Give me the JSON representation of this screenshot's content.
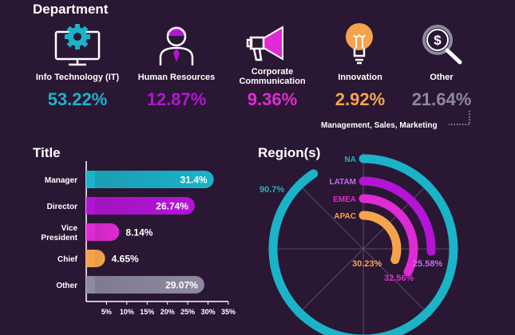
{
  "department": {
    "title": "Department",
    "items": [
      {
        "label": "Info Technology (IT)",
        "value": "53.22%",
        "color": "#1ab3c8",
        "icon": "monitor-gear-icon"
      },
      {
        "label": "Human Resources",
        "value": "12.87%",
        "color": "#b414d6",
        "icon": "person-icon"
      },
      {
        "label": "Corporate\nCommunication",
        "value": "9.36%",
        "color": "#e02ad3",
        "icon": "megaphone-icon"
      },
      {
        "label": "Innovation",
        "value": "2.92%",
        "color": "#f6a44b",
        "icon": "lightbulb-icon"
      },
      {
        "label": "Other",
        "value": "21.64%",
        "color": "#8d8aa0",
        "icon": "money-search-icon"
      }
    ],
    "note": "Management, Sales, Marketing"
  },
  "chart_data": [
    {
      "type": "bar",
      "orientation": "horizontal",
      "title": "Title",
      "categories": [
        "Manager",
        "Director",
        "Vice\nPresident",
        "Chief",
        "Other"
      ],
      "values": [
        31.4,
        26.74,
        8.14,
        4.65,
        29.07
      ],
      "value_labels": [
        "31.4%",
        "26.74%",
        "8.14%",
        "4.65%",
        "29.07%"
      ],
      "colors": [
        "#1ab3c8",
        "#b414d6",
        "#e02ad3",
        "#f6a44b",
        "#8d8aa0"
      ],
      "xlim": [
        0,
        35
      ],
      "xticks": [
        "5%",
        "10%",
        "15%",
        "20%",
        "25%",
        "30%",
        "35%"
      ]
    },
    {
      "type": "radial-bar",
      "title": "Region(s)",
      "categories": [
        "NA",
        "LATAM",
        "EMEA",
        "APAC"
      ],
      "values": [
        90.7,
        25.58,
        32.56,
        30.23
      ],
      "value_labels": [
        "90.7%",
        "25.58%",
        "32.56%",
        "30.23%"
      ],
      "colors": [
        "#1ab3c8",
        "#b414d6",
        "#e02ad3",
        "#f6a44b"
      ],
      "label_colors": [
        "#1ab3c8",
        "#c56bf0",
        "#e02ad3",
        "#f6a44b"
      ],
      "max": 100
    }
  ]
}
